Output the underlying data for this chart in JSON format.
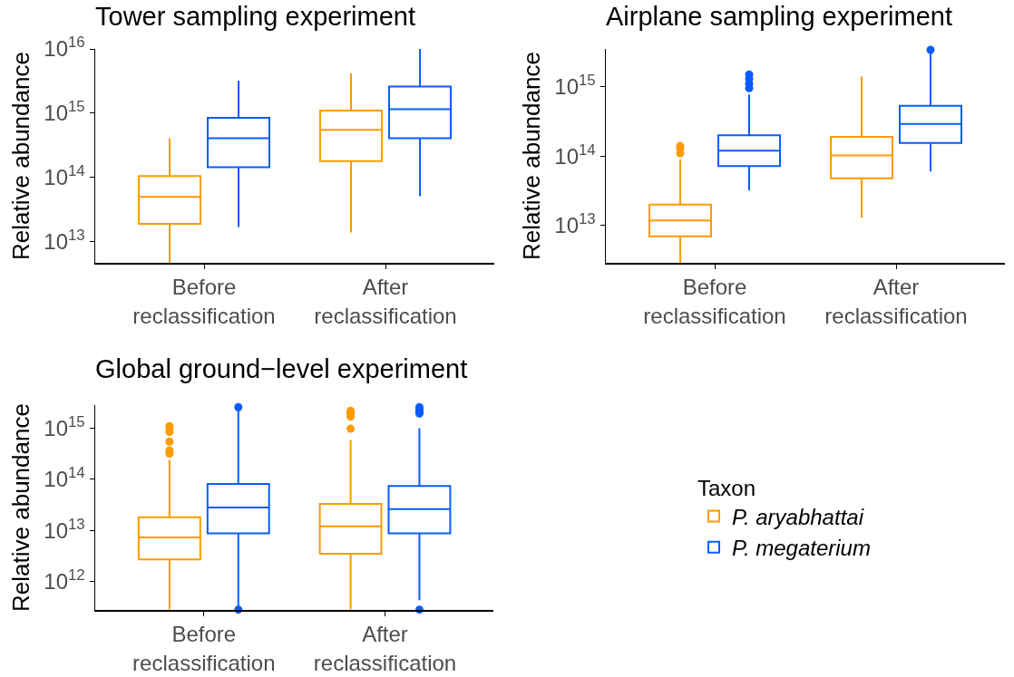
{
  "chart_data": [
    {
      "type": "box",
      "title": "Tower sampling experiment",
      "ylabel": "Relative abundance",
      "categories": [
        "Before reclassification",
        "After reclassification"
      ],
      "log": "y",
      "grid": false,
      "legend": false,
      "ylim": [
        4700000000000.0,
        1e+16
      ],
      "yticks": [
        {
          "value": 10000000000000.0,
          "label": "10$^{13}$"
        },
        {
          "value": 100000000000000.0,
          "label": "10$^{14}$"
        },
        {
          "value": 1000000000000000.0,
          "label": "10$^{15}$"
        },
        {
          "value": 1e+16,
          "label": "10$^{16}$"
        }
      ],
      "series": [
        {
          "color": "#ff9a00",
          "boxes": [
            {
              "low": 4700000000000.0,
              "q1": 19000000000000.0,
              "median": 50000000000000.0,
              "q3": 105000000000000.0,
              "high": 410000000000000.0
            },
            {
              "low": 14000000000000.0,
              "q1": 180000000000000.0,
              "median": 550000000000000.0,
              "q3": 1100000000000000.0,
              "high": 4200000000000000.0
            }
          ]
        },
        {
          "color": "#0a5cff",
          "boxes": [
            {
              "low": 17000000000000.0,
              "q1": 145000000000000.0,
              "median": 410000000000000.0,
              "q3": 850000000000000.0,
              "high": 3200000000000000.0
            },
            {
              "low": 51000000000000.0,
              "q1": 410000000000000.0,
              "median": 1150000000000000.0,
              "q3": 2600000000000000.0,
              "high": 1e+16
            }
          ]
        }
      ]
    },
    {
      "type": "box",
      "title": "Airplane sampling experiment",
      "ylabel": "Relative abundance",
      "categories": [
        "Before reclassification",
        "After reclassification"
      ],
      "log": "y",
      "grid": false,
      "legend": false,
      "ylim": [
        2900000000000.0,
        3500000000000000.0
      ],
      "yticks": [
        {
          "value": 10000000000000.0,
          "label": "10$^{13}$"
        },
        {
          "value": 100000000000000.0,
          "label": "10$^{14}$"
        },
        {
          "value": 1000000000000000.0,
          "label": "10$^{15}$"
        }
      ],
      "series": [
        {
          "color": "#ff9a00",
          "boxes": [
            {
              "low": 2900000000000.0,
              "q1": 7000000000000.0,
              "median": 11800000000000.0,
              "q3": 20000000000000.0,
              "high": 90000000000000.0,
              "outliers": [
                110000000000000.0,
                130000000000000.0,
                140000000000000.0
              ]
            },
            {
              "low": 13000000000000.0,
              "q1": 48000000000000.0,
              "median": 102000000000000.0,
              "q3": 190000000000000.0,
              "high": 1400000000000000.0
            }
          ]
        },
        {
          "color": "#0a5cff",
          "boxes": [
            {
              "low": 32000000000000.0,
              "q1": 72000000000000.0,
              "median": 120000000000000.0,
              "q3": 200000000000000.0,
              "high": 770000000000000.0,
              "outliers": [
                950000000000000.0,
                1100000000000000.0,
                1300000000000000.0,
                1500000000000000.0
              ]
            },
            {
              "low": 60000000000000.0,
              "q1": 155000000000000.0,
              "median": 290000000000000.0,
              "q3": 530000000000000.0,
              "high": 3200000000000000.0,
              "outliers": [
                3400000000000000.0
              ]
            }
          ]
        }
      ]
    },
    {
      "type": "box",
      "title": "Global ground−level experiment",
      "ylabel": "Relative abundance",
      "legend_title": "Taxon",
      "categories": [
        "Before reclassification",
        "After reclassification"
      ],
      "log": "y",
      "grid": false,
      "legend": "right",
      "ylim": [
        276000000000.0,
        2850000000000000.0
      ],
      "yticks": [
        {
          "value": 1000000000000.0,
          "label": "10$^{12}$"
        },
        {
          "value": 10000000000000.0,
          "label": "10$^{13}$"
        },
        {
          "value": 100000000000000.0,
          "label": "10$^{14}$"
        },
        {
          "value": 1000000000000000.0,
          "label": "10$^{15}$"
        }
      ],
      "series": [
        {
          "name": "P. aryabhattai",
          "color": "#ff9a00",
          "boxes": [
            {
              "low": 280000000000.0,
              "q1": 2700000000000.0,
              "median": 7300000000000.0,
              "q3": 18000000000000.0,
              "high": 240000000000000.0,
              "outliers": [
                320000000000000.0,
                370000000000000.0,
                550000000000000.0,
                850000000000000.0,
                1000000000000000.0,
                1100000000000000.0
              ]
            },
            {
              "low": 280000000000.0,
              "q1": 3500000000000.0,
              "median": 12000000000000.0,
              "q3": 33000000000000.0,
              "high": 590000000000000.0,
              "outliers": [
                980000000000000.0,
                1700000000000000.0,
                1950000000000000.0,
                2200000000000000.0
              ]
            }
          ]
        },
        {
          "name": "P. megaterium",
          "color": "#0a5cff",
          "boxes": [
            {
              "low": 320000000000.0,
              "q1": 8700000000000.0,
              "median": 28000000000000.0,
              "q3": 81000000000000.0,
              "high": 2300000000000000.0,
              "outliers": [
                280000000000.0,
                2600000000000000.0
              ]
            },
            {
              "low": 430000000000.0,
              "q1": 8700000000000.0,
              "median": 26000000000000.0,
              "q3": 74000000000000.0,
              "high": 1000000000000000.0,
              "outliers": [
                280000000000.0,
                1950000000000000.0,
                2100000000000000.0,
                2300000000000000.0,
                2600000000000000.0
              ]
            }
          ]
        }
      ]
    }
  ]
}
